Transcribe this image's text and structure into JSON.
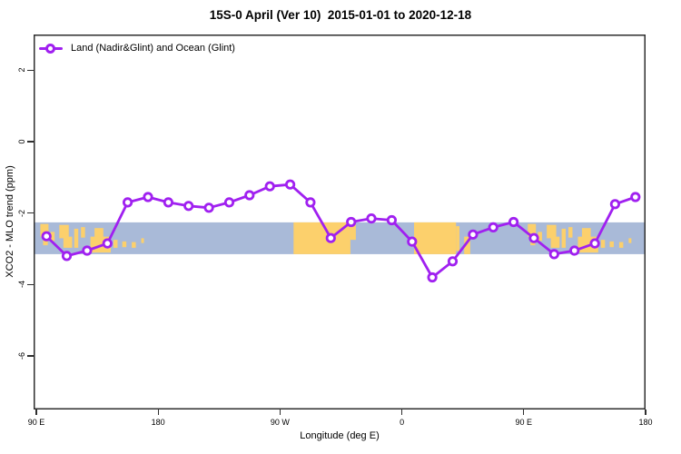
{
  "title": "15S-0 April (Ver 10)  2015-01-01 to 2020-12-18",
  "legend": {
    "label": "Land (Nadir&Glint) and Ocean (Glint)"
  },
  "axes": {
    "x": {
      "label": "Longitude (deg E)",
      "ticks": [
        {
          "lon": 90,
          "label": "90 E"
        },
        {
          "lon": 180,
          "label": "180"
        },
        {
          "lon": 270,
          "label": "90 W"
        },
        {
          "lon": 360,
          "label": "0"
        },
        {
          "lon": 450,
          "label": "90 E"
        },
        {
          "lon": 540,
          "label": "180"
        }
      ]
    },
    "y": {
      "label": "XCO2 - MLO trend (ppm)",
      "ticks": [
        {
          "val": 2,
          "label": "2"
        },
        {
          "val": 0,
          "label": "0"
        },
        {
          "val": -2,
          "label": "-2"
        },
        {
          "val": -4,
          "label": "-4"
        },
        {
          "val": -6,
          "label": "-6"
        }
      ]
    }
  },
  "colors": {
    "line": "#a020f0",
    "marker_fill": "#ffffff",
    "ocean": "#a9bad8",
    "land": "#fcd06c",
    "frame": "#2e2e2e"
  },
  "chart_data": {
    "type": "line",
    "title": "15S-0 April (Ver 10)  2015-01-01 to 2020-12-18",
    "xlabel": "Longitude (deg E)",
    "ylabel": "XCO2 - MLO trend (ppm)",
    "xlim": [
      88,
      540
    ],
    "ylim": [
      -7.5,
      3
    ],
    "x_tick_lons": [
      90,
      180,
      270,
      360,
      450,
      540
    ],
    "x": [
      97.5,
      112.5,
      127.5,
      142.5,
      157.5,
      172.5,
      187.5,
      202.5,
      217.5,
      232.5,
      247.5,
      262.5,
      277.5,
      292.5,
      307.5,
      322.5,
      337.5,
      352.5,
      367.5,
      382.5,
      397.5,
      412.5,
      427.5,
      442.5,
      457.5,
      472.5,
      487.5,
      502.5,
      517.5,
      532.5
    ],
    "series": [
      {
        "name": "Land (Nadir&Glint) and Ocean (Glint)",
        "values": [
          -2.65,
          -3.2,
          -3.05,
          -2.85,
          -1.7,
          -1.55,
          -1.7,
          -1.8,
          -1.85,
          -1.7,
          -1.5,
          -1.25,
          -1.2,
          -1.7,
          -2.7,
          -2.25,
          -2.15,
          -2.2,
          -2.8,
          -3.8,
          -3.35,
          -2.6,
          -2.4,
          -2.25,
          -2.7,
          -3.15,
          -3.05,
          -2.85,
          -1.75,
          -1.55
        ]
      }
    ],
    "map_band": {
      "description": "world map strip (ocean/land) for latitude band 15S-0",
      "value_range": [
        -2.26,
        -3.15
      ],
      "land_patches": [
        [
          93,
          99,
          0.05,
          0.45
        ],
        [
          95,
          98.5,
          0.45,
          0.72
        ],
        [
          100.5,
          103.5,
          0.3,
          0.58
        ],
        [
          107,
          114,
          0.08,
          0.5
        ],
        [
          110,
          116.5,
          0.45,
          0.8
        ],
        [
          118,
          121,
          0.2,
          0.8
        ],
        [
          123,
          126,
          0.15,
          0.48
        ],
        [
          130,
          145,
          0.45,
          0.95
        ],
        [
          133,
          139.5,
          0.18,
          0.5
        ],
        [
          147,
          150,
          0.55,
          0.8
        ],
        [
          153.5,
          156.5,
          0.6,
          0.78
        ],
        [
          160.5,
          163.5,
          0.62,
          0.8
        ],
        [
          167.5,
          169.5,
          0.5,
          0.65
        ],
        [
          280,
          322,
          0,
          1
        ],
        [
          322,
          326,
          0,
          0.55
        ],
        [
          369,
          400,
          0,
          1
        ],
        [
          400,
          402.5,
          0.12,
          0.9
        ],
        [
          406,
          410.5,
          0.45,
          1
        ],
        [
          453,
          459,
          0.05,
          0.45
        ],
        [
          455,
          458.5,
          0.45,
          0.72
        ],
        [
          460.5,
          463.5,
          0.3,
          0.58
        ],
        [
          467,
          474,
          0.08,
          0.5
        ],
        [
          470,
          476.5,
          0.45,
          0.8
        ],
        [
          478,
          481,
          0.2,
          0.8
        ],
        [
          483,
          486,
          0.15,
          0.48
        ],
        [
          490,
          505,
          0.45,
          0.95
        ],
        [
          493,
          499.5,
          0.18,
          0.5
        ],
        [
          507,
          510,
          0.55,
          0.8
        ],
        [
          513.5,
          516.5,
          0.6,
          0.78
        ],
        [
          520.5,
          523.5,
          0.62,
          0.8
        ],
        [
          527.5,
          529.5,
          0.5,
          0.65
        ]
      ]
    }
  }
}
